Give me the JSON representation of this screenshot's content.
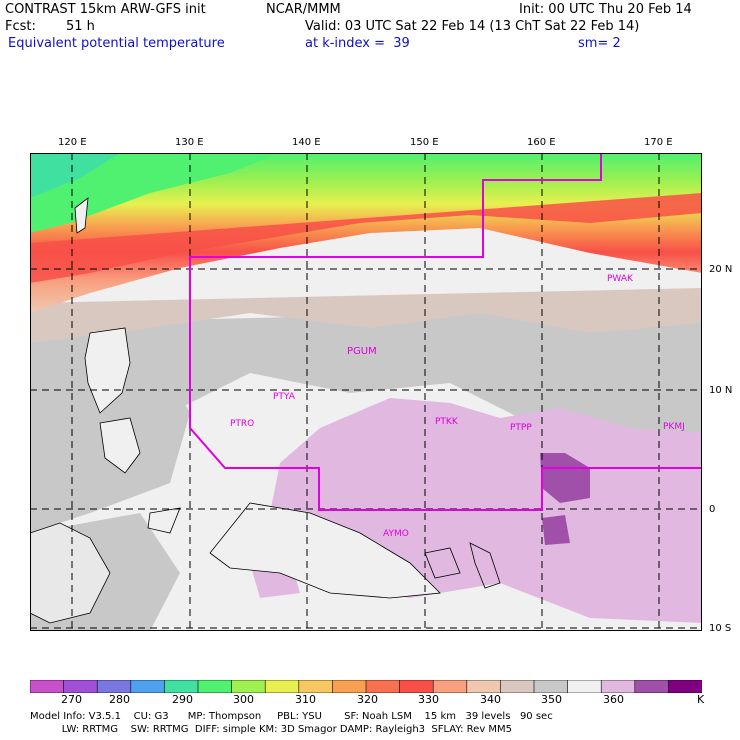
{
  "header": {
    "model": "CONTRAST 15km ARW-GFS init",
    "org": "NCAR/MMM",
    "init": "Init: 00 UTC Thu 20 Feb 14",
    "fcst_label": "Fcst:",
    "fcst_value": "51 h",
    "valid": "Valid: 03 UTC Sat 22 Feb 14 (13 ChT Sat 22 Feb 14)",
    "field": "Equivalent potential temperature",
    "level": "at k-index =  39",
    "smoothing": "sm= 2"
  },
  "axes": {
    "lon_labels": [
      "120 E",
      "130 E",
      "140 E",
      "150 E",
      "160 E",
      "170 E"
    ],
    "lat_labels": [
      "20 N",
      "10 N",
      "0",
      "10 S"
    ]
  },
  "stations": [
    "PWAK",
    "PGUM",
    "PTYA",
    "PTRO",
    "PTKK",
    "PTPP",
    "PKMJ",
    "AYMO"
  ],
  "colorbar": {
    "unit": "K",
    "labels": [
      "270",
      "280",
      "290",
      "300",
      "310",
      "320",
      "330",
      "340",
      "350",
      "360"
    ],
    "colors": [
      "#c850c8",
      "#a050d8",
      "#7878e0",
      "#50a0f0",
      "#40e0a0",
      "#50f070",
      "#a0f050",
      "#e8f050",
      "#f8c860",
      "#f8a050",
      "#f87050",
      "#f85048",
      "#f8a080",
      "#f0c8b0",
      "#d8c8c0",
      "#c8c8c8",
      "#f0f0f0",
      "#e0b8e0",
      "#a050a8",
      "#800080"
    ]
  },
  "model_info": {
    "line1": "Model Info: V3.5.1    CU: G3      MP: Thompson     PBL: YSU       SF: Noah LSM    15 km   39 levels   90 sec",
    "line2": "          LW: RRTMG    SW: RRTMG  DIFF: simple KM: 3D Smagor DAMP: Rayleigh3  SFLAY: Rev MM5"
  }
}
